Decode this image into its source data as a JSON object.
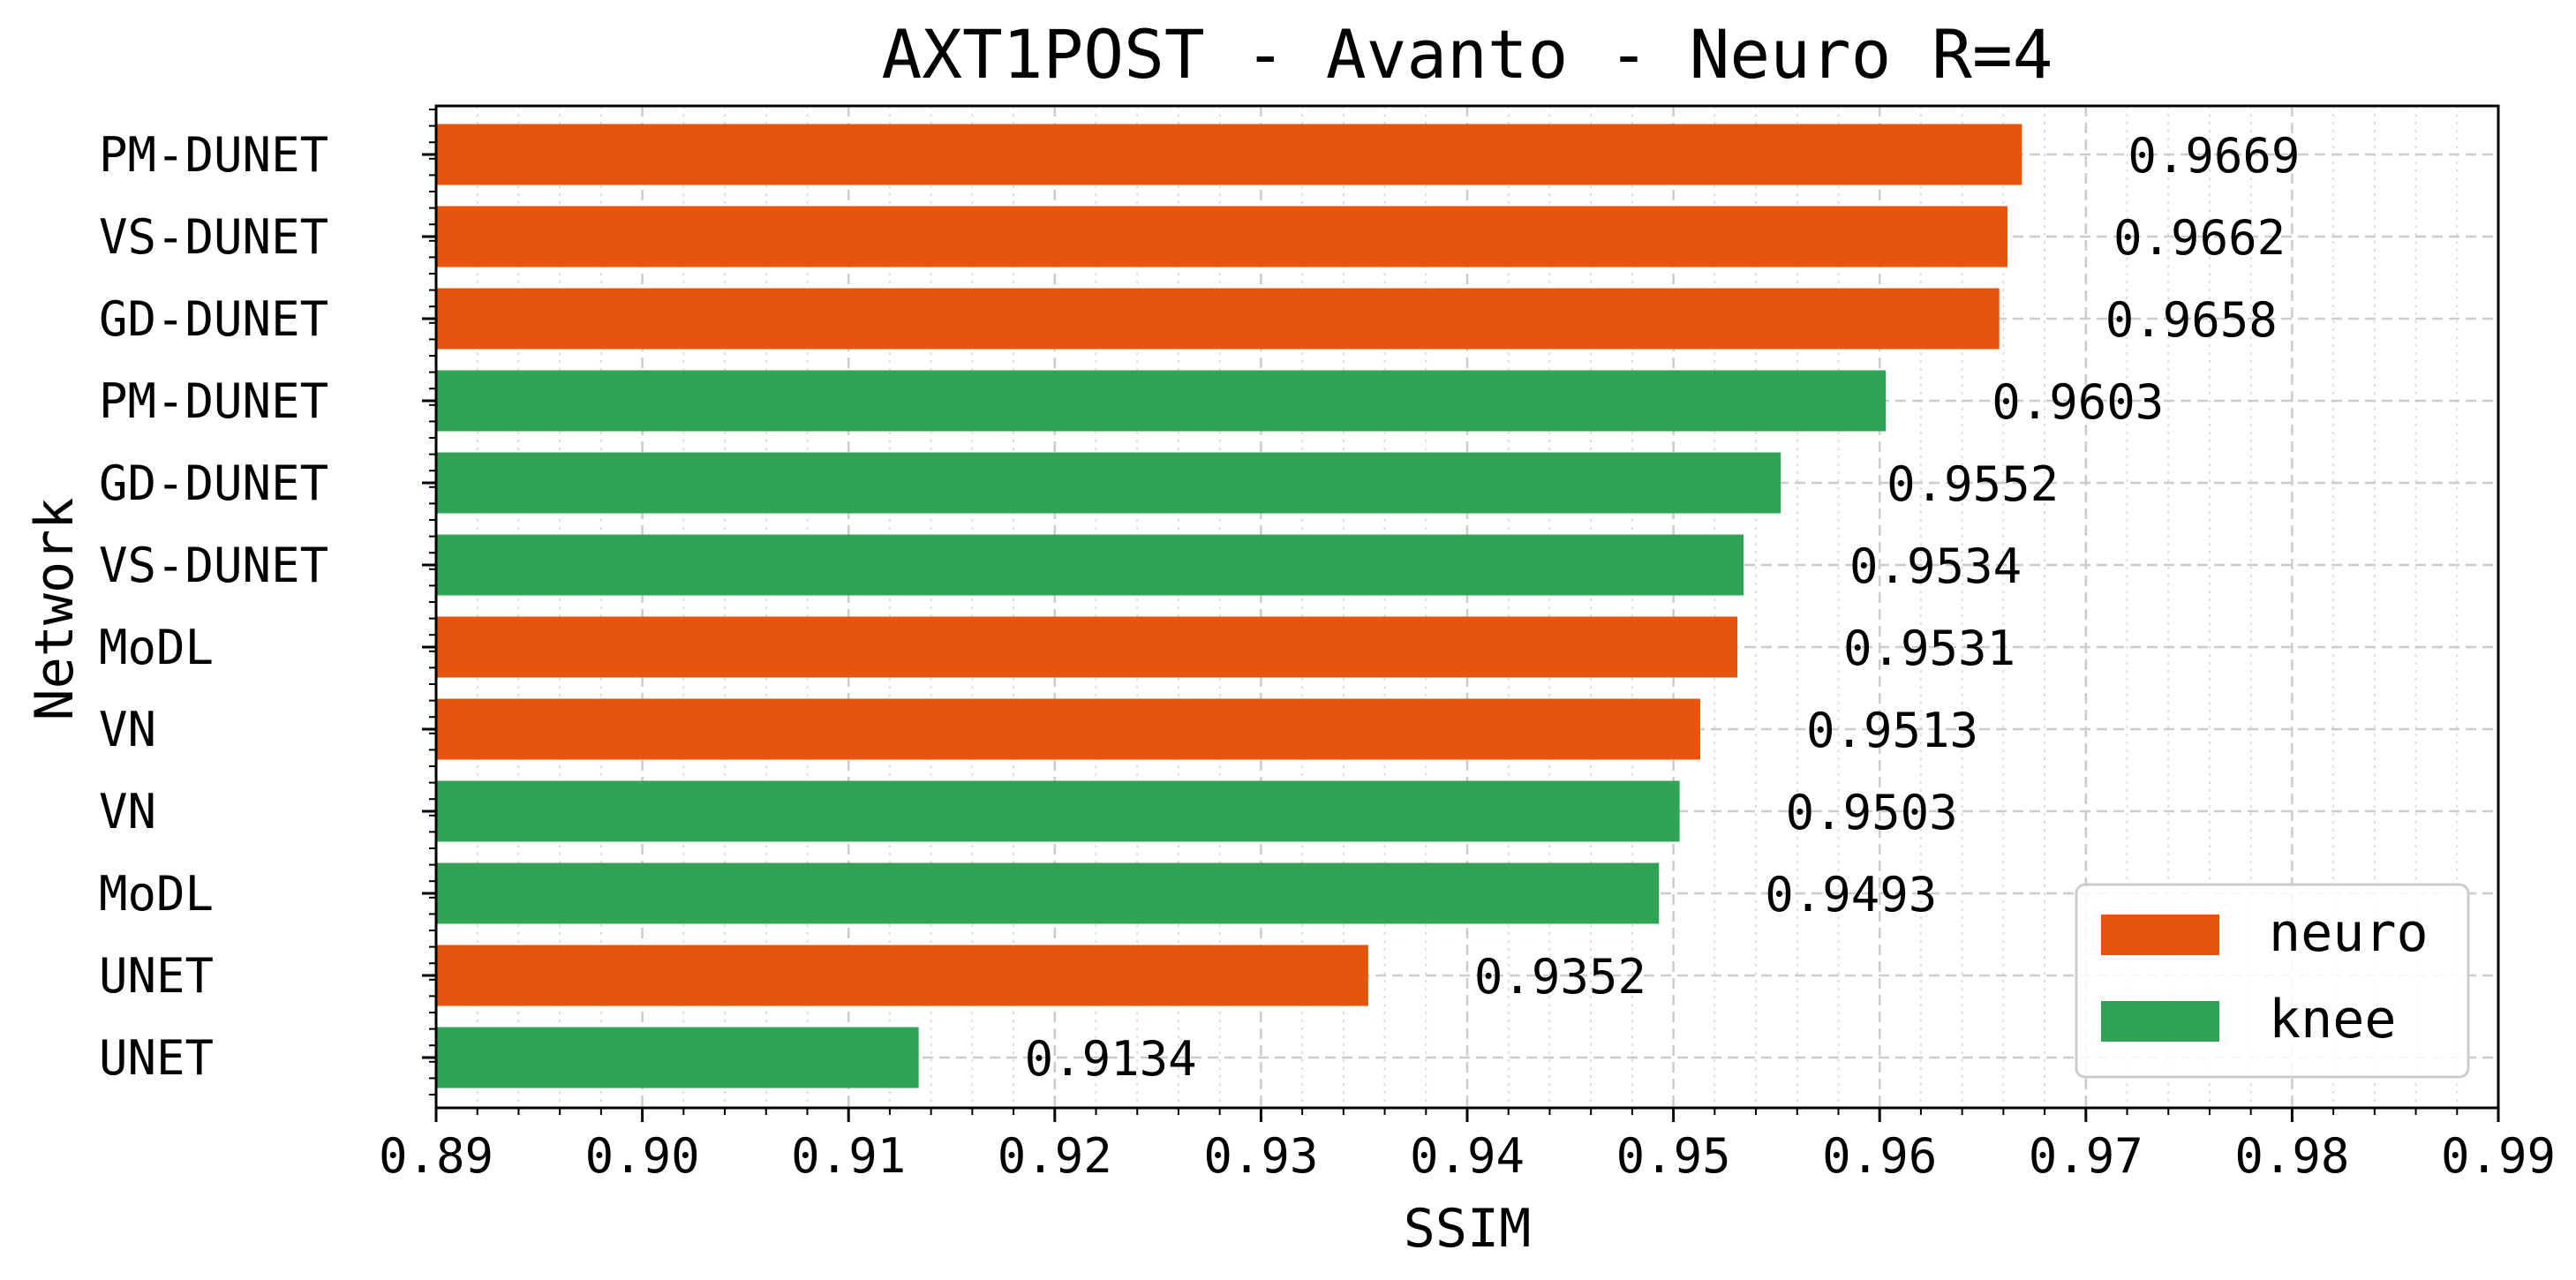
{
  "chart_data": {
    "type": "bar",
    "orientation": "horizontal",
    "title": "AXT1POST - Avanto - Neuro R=4",
    "xlabel": "SSIM",
    "ylabel": "Network",
    "xlim": [
      0.89,
      0.99
    ],
    "xticks": [
      "0.89",
      "0.90",
      "0.91",
      "0.92",
      "0.93",
      "0.94",
      "0.95",
      "0.96",
      "0.97",
      "0.98",
      "0.99"
    ],
    "grid": true,
    "legend_position": "bottom-right",
    "legend": [
      {
        "name": "neuro",
        "color": "#e6550d"
      },
      {
        "name": "knee",
        "color": "#31a354"
      }
    ],
    "bars": [
      {
        "label": "PM-DUNET",
        "value": 0.9669,
        "value_label": "0.9669",
        "group": "neuro"
      },
      {
        "label": "VS-DUNET",
        "value": 0.9662,
        "value_label": "0.9662",
        "group": "neuro"
      },
      {
        "label": "GD-DUNET",
        "value": 0.9658,
        "value_label": "0.9658",
        "group": "neuro"
      },
      {
        "label": "PM-DUNET",
        "value": 0.9603,
        "value_label": "0.9603",
        "group": "knee"
      },
      {
        "label": "GD-DUNET",
        "value": 0.9552,
        "value_label": "0.9552",
        "group": "knee"
      },
      {
        "label": "VS-DUNET",
        "value": 0.9534,
        "value_label": "0.9534",
        "group": "knee"
      },
      {
        "label": "MoDL",
        "value": 0.9531,
        "value_label": "0.9531",
        "group": "neuro"
      },
      {
        "label": "VN",
        "value": 0.9513,
        "value_label": "0.9513",
        "group": "neuro"
      },
      {
        "label": "VN",
        "value": 0.9503,
        "value_label": "0.9503",
        "group": "knee"
      },
      {
        "label": "MoDL",
        "value": 0.9493,
        "value_label": "0.9493",
        "group": "knee"
      },
      {
        "label": "UNET",
        "value": 0.9352,
        "value_label": "0.9352",
        "group": "neuro"
      },
      {
        "label": "UNET",
        "value": 0.9134,
        "value_label": "0.9134",
        "group": "knee"
      }
    ]
  }
}
